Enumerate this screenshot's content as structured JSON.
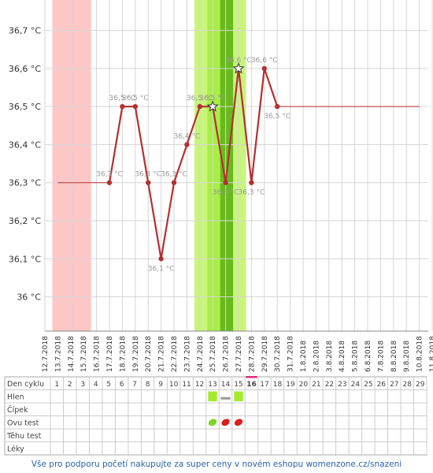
{
  "chart_data": {
    "type": "line",
    "y_ticks": [
      36.0,
      36.1,
      36.2,
      36.3,
      36.4,
      36.5,
      36.6,
      36.7
    ],
    "y_tick_labels": [
      "36 °C",
      "36,1 °C",
      "36,2 °C",
      "36,3 °C",
      "36,4 °C",
      "36,5 °C",
      "36,6 °C",
      "36,7 °C"
    ],
    "ylim": [
      35.91,
      36.78
    ],
    "x_dates": [
      "12.7.2018",
      "13.7.2018",
      "14.7.2018",
      "15.7.2018",
      "16.7.2018",
      "17.7.2018",
      "18.7.2018",
      "19.7.2018",
      "20.7.2018",
      "21.7.2018",
      "22.7.2018",
      "23.7.2018",
      "24.7.2018",
      "25.7.2018",
      "26.7.2018",
      "27.7.2018",
      "28.7.2018",
      "29.7.2018",
      "30.7.2018",
      "31.7.2018",
      "1.8.2018",
      "2.8.2018",
      "3.8.2018",
      "4.8.2018",
      "5.8.2018",
      "6.8.2018",
      "7.8.2018",
      "8.8.2018",
      "9.8.2018",
      "10.8.2018",
      "11.8.2018"
    ],
    "series": [
      {
        "values": [
          {
            "x": "17.7.2018",
            "y": 36.3,
            "label": "36,3 °C"
          },
          {
            "x": "18.7.2018",
            "y": 36.5,
            "label": "36,5 °C"
          },
          {
            "x": "19.7.2018",
            "y": 36.5,
            "label": "36,5 °C"
          },
          {
            "x": "20.7.2018",
            "y": 36.3,
            "label": "36,3 °C"
          },
          {
            "x": "21.7.2018",
            "y": 36.1,
            "label": "36,1 °C"
          },
          {
            "x": "22.7.2018",
            "y": 36.3,
            "label": "36,3 °C"
          },
          {
            "x": "23.7.2018",
            "y": 36.4,
            "label": "36,4 °C"
          },
          {
            "x": "24.7.2018",
            "y": 36.5,
            "label": "36,5 °C"
          },
          {
            "x": "25.7.2018",
            "y": 36.5,
            "label": "36,5 °C",
            "star": true
          },
          {
            "x": "26.7.2018",
            "y": 36.3,
            "label": "36,3 °C"
          },
          {
            "x": "27.7.2018",
            "y": 36.6,
            "label": "36,6 °C",
            "star": true
          },
          {
            "x": "28.7.2018",
            "y": 36.3,
            "label": "36,3 °C"
          },
          {
            "x": "29.7.2018",
            "y": 36.6,
            "label": "36,6 °C"
          },
          {
            "x": "30.7.2018",
            "y": 36.5,
            "label": "36,5 °C"
          }
        ]
      }
    ],
    "leading_line": {
      "from": "13.7.2018",
      "to": "17.7.2018",
      "y": 36.3
    },
    "trailing_line": {
      "from": "30.7.2018",
      "to": "10.8.2018",
      "y": 36.5
    },
    "bands": [
      {
        "from": "12.7.2018",
        "to": "15.7.2018",
        "color": "#ffc6c6"
      },
      {
        "from": "23.7.2018",
        "to": "27.7.2018",
        "color": "#c8f57a"
      },
      {
        "from": "24.7.2018",
        "to": "26.7.2018",
        "color": "#a8ee45"
      },
      {
        "from": "25.7.2018",
        "to": "26.7.2018",
        "color": "#68b91e"
      }
    ],
    "grid": true,
    "line_color": "#b33030",
    "label_color": "#999999"
  },
  "table": {
    "row_labels": [
      "Den cyklu",
      "Hlen",
      "Čípek",
      "Ovu test",
      "Těhu test",
      "Léky"
    ],
    "days": [
      "1",
      "2",
      "3",
      "4",
      "5",
      "6",
      "7",
      "8",
      "9",
      "10",
      "11",
      "12",
      "13",
      "14",
      "15",
      "16",
      "17",
      "18",
      "19",
      "20",
      "21",
      "22",
      "23",
      "24",
      "25",
      "26",
      "27",
      "28",
      "29"
    ],
    "highlight_day": "16",
    "highlight_color": "#e0287a",
    "hlen_marks": [
      {
        "day": "13",
        "kind": "square",
        "color": "#a6ea2e"
      },
      {
        "day": "14",
        "kind": "dash",
        "color": "#999999"
      },
      {
        "day": "15",
        "kind": "square",
        "color": "#a6ea2e"
      }
    ],
    "ovu_marks": [
      {
        "day": "13",
        "color": "#7ed321"
      },
      {
        "day": "14",
        "color": "#d9201c"
      },
      {
        "day": "15",
        "color": "#d9201c"
      }
    ]
  },
  "footer_text": "Vše pro podporu početí nakupujte za super ceny v novém eshopu womenzone.cz/snazeni"
}
